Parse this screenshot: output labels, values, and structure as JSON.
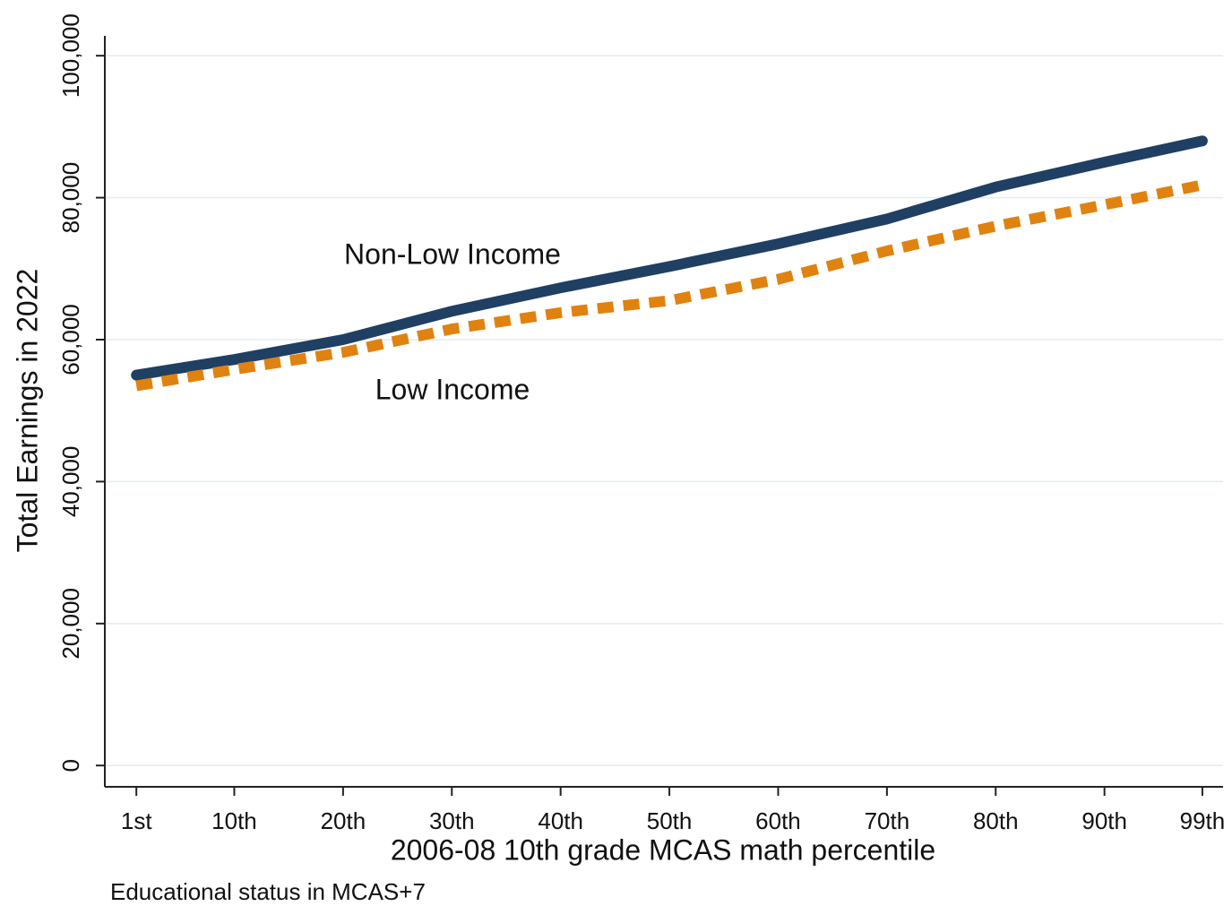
{
  "chart_data": {
    "type": "line",
    "x_label": "2006-08 10th grade MCAS math percentile",
    "y_label": "Total Earnings in 2022",
    "note": "Educational status in MCAS+7",
    "x": [
      1,
      10,
      20,
      30,
      40,
      50,
      60,
      70,
      80,
      90,
      99
    ],
    "series": [
      {
        "name": "Non-Low Income",
        "color": "#1f3f63",
        "style": "solid",
        "values": [
          55000,
          57200,
          60000,
          64000,
          67300,
          70300,
          73500,
          77000,
          81500,
          85000,
          88000
        ]
      },
      {
        "name": "Low Income",
        "color": "#e0820f",
        "style": "dashed",
        "values": [
          53500,
          55800,
          58200,
          61500,
          63800,
          65500,
          68500,
          72500,
          76000,
          79000,
          81800
        ]
      }
    ],
    "xlim": [
      -1.9,
      100.9
    ],
    "ylim": [
      -3000,
      102800
    ],
    "xticks": [
      {
        "value": 1,
        "label": "1st"
      },
      {
        "value": 10,
        "label": "10th"
      },
      {
        "value": 20,
        "label": "20th"
      },
      {
        "value": 30,
        "label": "30th"
      },
      {
        "value": 40,
        "label": "40th"
      },
      {
        "value": 50,
        "label": "50th"
      },
      {
        "value": 60,
        "label": "60th"
      },
      {
        "value": 70,
        "label": "70th"
      },
      {
        "value": 80,
        "label": "80th"
      },
      {
        "value": 90,
        "label": "90th"
      },
      {
        "value": 99,
        "label": "99th"
      }
    ],
    "yticks": [
      0,
      {
        "value": 20000,
        "label": "20,000"
      },
      {
        "value": 40000,
        "label": "40,000"
      },
      {
        "value": 60000,
        "label": "60,000"
      },
      {
        "value": 80000,
        "label": "80,000"
      },
      {
        "value": 100000,
        "label": "100,000"
      }
    ],
    "grid": true
  }
}
